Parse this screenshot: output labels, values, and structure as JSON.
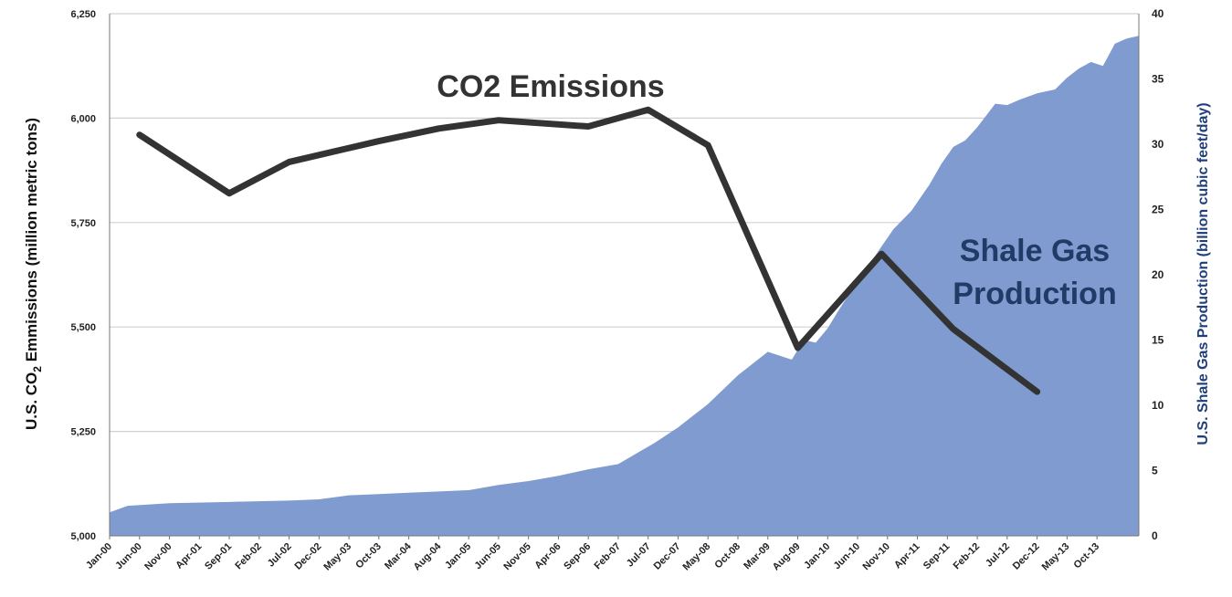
{
  "chart_data": {
    "type": "line",
    "annotations": {
      "co2": "CO2 Emissions",
      "shale_line1": "Shale Gas",
      "shale_line2": "Production"
    },
    "ylabel_left": {
      "prefix": "U.S. CO",
      "sub": "2",
      "suffix": " Emmissions (million metric tons)"
    },
    "ylabel_right": "U.S. Shale Gas Production (billion cubic feet/day)",
    "ylim_left": [
      5000,
      6250
    ],
    "ylim_right": [
      0,
      40
    ],
    "left_ticks": [
      "5,000",
      "5,250",
      "5,500",
      "5,750",
      "6,000",
      "6,250"
    ],
    "left_tick_values": [
      5000,
      5250,
      5500,
      5750,
      6000,
      6250
    ],
    "right_ticks": [
      "0",
      "5",
      "10",
      "15",
      "20",
      "25",
      "30",
      "35",
      "40"
    ],
    "right_tick_values": [
      0,
      5,
      10,
      15,
      20,
      25,
      30,
      35,
      40
    ],
    "x_range_months": [
      0,
      172
    ],
    "x_ticks": [
      "Jan-00",
      "Jun-00",
      "Nov-00",
      "Apr-01",
      "Sep-01",
      "Feb-02",
      "Jul-02",
      "Dec-02",
      "May-03",
      "Oct-03",
      "Mar-04",
      "Aug-04",
      "Jan-05",
      "Jun-05",
      "Nov-05",
      "Apr-06",
      "Sep-06",
      "Feb-07",
      "Jul-07",
      "Dec-07",
      "May-08",
      "Oct-08",
      "Mar-09",
      "Aug-09",
      "Jan-10",
      "Jun-10",
      "Nov-10",
      "Apr-11",
      "Sep-11",
      "Feb-12",
      "Jul-12",
      "Dec-12",
      "May-13",
      "Oct-13"
    ],
    "grid": true,
    "colors": {
      "co2_line": "#333333",
      "shale_area": "#7f9bcf",
      "right_axis_label": "#1f3f7a",
      "gridline": "#d0d0d0"
    },
    "series": [
      {
        "name": "CO2 Emissions",
        "axis": "left",
        "kind": "line",
        "x": [
          "Jun-00",
          "Sep-01",
          "Jul-02",
          "Oct-03",
          "Aug-04",
          "Jun-05",
          "Sep-06",
          "Jul-07",
          "May-08",
          "Aug-09",
          "Oct-10",
          "Oct-11",
          "Dec-12"
        ],
        "x_month_index": [
          5,
          20,
          30,
          45,
          55,
          65,
          80,
          90,
          100,
          115,
          129,
          141,
          155
        ],
        "y": [
          5960,
          5820,
          5895,
          5945,
          5975,
          5995,
          5980,
          6020,
          5935,
          5450,
          5675,
          5495,
          5345
        ]
      },
      {
        "name": "Shale Gas Production",
        "axis": "right",
        "kind": "area",
        "x_month_index": [
          0,
          3,
          10,
          20,
          30,
          35,
          40,
          45,
          50,
          55,
          60,
          65,
          70,
          75,
          80,
          85,
          88,
          91,
          95,
          100,
          105,
          110,
          114,
          116,
          118,
          120,
          122,
          125,
          128,
          131,
          134,
          137,
          139,
          141,
          143,
          145,
          148,
          150,
          152,
          155,
          158,
          160,
          162,
          164,
          166,
          168,
          170,
          172
        ],
        "y": [
          1.8,
          2.3,
          2.5,
          2.6,
          2.7,
          2.8,
          3.1,
          3.2,
          3.3,
          3.4,
          3.5,
          3.9,
          4.2,
          4.6,
          5.1,
          5.5,
          6.3,
          7.1,
          8.3,
          10.1,
          12.3,
          14.1,
          13.5,
          15.0,
          14.8,
          15.9,
          17.4,
          19.5,
          21.5,
          23.5,
          24.9,
          26.9,
          28.5,
          29.8,
          30.3,
          31.3,
          33.1,
          33.0,
          33.4,
          33.9,
          34.2,
          35.1,
          35.8,
          36.3,
          36.0,
          37.7,
          38.1,
          38.3
        ]
      }
    ]
  }
}
